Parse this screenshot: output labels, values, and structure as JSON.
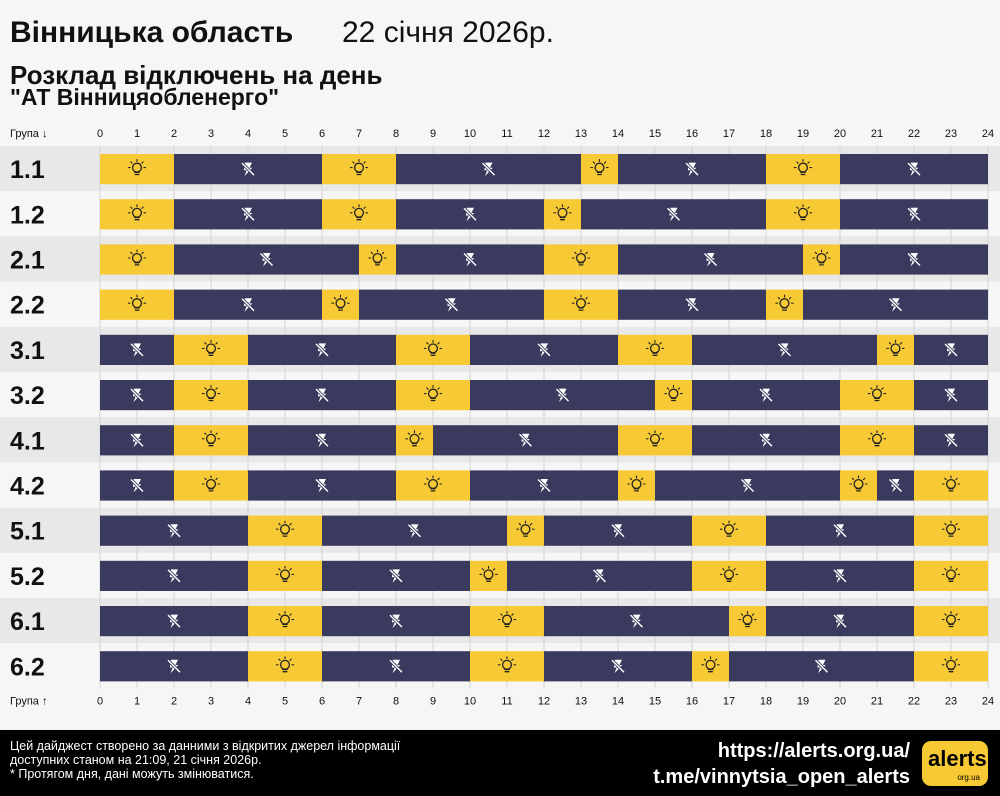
{
  "header": {
    "region": "Вінницька область",
    "date": "22 січня 2026р.",
    "subtitle": "Розклад відключень на день",
    "company": "\"АТ Вінницяобленерго\""
  },
  "axis": {
    "top_label": "Група ↓",
    "bottom_label": "Група ↑",
    "hours": [
      "0",
      "1",
      "2",
      "3",
      "4",
      "5",
      "6",
      "7",
      "8",
      "9",
      "10",
      "11",
      "12",
      "13",
      "14",
      "15",
      "16",
      "17",
      "18",
      "19",
      "20",
      "21",
      "22",
      "23",
      "24"
    ]
  },
  "colors": {
    "on": "#f7c934",
    "off": "#3a3a5e",
    "row_even": "#e8e8e8",
    "row_odd": "#f6f6f6"
  },
  "icons": {
    "on": "lightbulb-icon",
    "off": "power-off-icon"
  },
  "chart_data": {
    "type": "table",
    "unit": "hours",
    "legend": {
      "on": "power on",
      "off": "power off"
    },
    "groups": [
      {
        "name": "1.1",
        "segments": [
          [
            0,
            2,
            "on"
          ],
          [
            2,
            6,
            "off"
          ],
          [
            6,
            8,
            "on"
          ],
          [
            8,
            13,
            "off"
          ],
          [
            13,
            14,
            "on"
          ],
          [
            14,
            18,
            "off"
          ],
          [
            18,
            20,
            "on"
          ],
          [
            20,
            24,
            "off"
          ]
        ]
      },
      {
        "name": "1.2",
        "segments": [
          [
            0,
            2,
            "on"
          ],
          [
            2,
            6,
            "off"
          ],
          [
            6,
            8,
            "on"
          ],
          [
            8,
            12,
            "off"
          ],
          [
            12,
            13,
            "on"
          ],
          [
            13,
            18,
            "off"
          ],
          [
            18,
            20,
            "on"
          ],
          [
            20,
            24,
            "off"
          ]
        ]
      },
      {
        "name": "2.1",
        "segments": [
          [
            0,
            2,
            "on"
          ],
          [
            2,
            7,
            "off"
          ],
          [
            7,
            8,
            "on"
          ],
          [
            8,
            12,
            "off"
          ],
          [
            12,
            14,
            "on"
          ],
          [
            14,
            19,
            "off"
          ],
          [
            19,
            20,
            "on"
          ],
          [
            20,
            24,
            "off"
          ]
        ]
      },
      {
        "name": "2.2",
        "segments": [
          [
            0,
            2,
            "on"
          ],
          [
            2,
            6,
            "off"
          ],
          [
            6,
            7,
            "on"
          ],
          [
            7,
            12,
            "off"
          ],
          [
            12,
            14,
            "on"
          ],
          [
            14,
            18,
            "off"
          ],
          [
            18,
            19,
            "on"
          ],
          [
            19,
            24,
            "off"
          ]
        ]
      },
      {
        "name": "3.1",
        "segments": [
          [
            0,
            2,
            "off"
          ],
          [
            2,
            4,
            "on"
          ],
          [
            4,
            8,
            "off"
          ],
          [
            8,
            10,
            "on"
          ],
          [
            10,
            14,
            "off"
          ],
          [
            14,
            16,
            "on"
          ],
          [
            16,
            21,
            "off"
          ],
          [
            21,
            22,
            "on"
          ],
          [
            22,
            24,
            "off"
          ]
        ]
      },
      {
        "name": "3.2",
        "segments": [
          [
            0,
            2,
            "off"
          ],
          [
            2,
            4,
            "on"
          ],
          [
            4,
            8,
            "off"
          ],
          [
            8,
            10,
            "on"
          ],
          [
            10,
            15,
            "off"
          ],
          [
            15,
            16,
            "on"
          ],
          [
            16,
            20,
            "off"
          ],
          [
            20,
            22,
            "on"
          ],
          [
            22,
            24,
            "off"
          ]
        ]
      },
      {
        "name": "4.1",
        "segments": [
          [
            0,
            2,
            "off"
          ],
          [
            2,
            4,
            "on"
          ],
          [
            4,
            8,
            "off"
          ],
          [
            8,
            9,
            "on"
          ],
          [
            9,
            14,
            "off"
          ],
          [
            14,
            16,
            "on"
          ],
          [
            16,
            20,
            "off"
          ],
          [
            20,
            22,
            "on"
          ],
          [
            22,
            24,
            "off"
          ]
        ]
      },
      {
        "name": "4.2",
        "segments": [
          [
            0,
            2,
            "off"
          ],
          [
            2,
            4,
            "on"
          ],
          [
            4,
            8,
            "off"
          ],
          [
            8,
            10,
            "on"
          ],
          [
            10,
            14,
            "off"
          ],
          [
            14,
            15,
            "on"
          ],
          [
            15,
            20,
            "off"
          ],
          [
            20,
            21,
            "on"
          ],
          [
            21,
            22,
            "off"
          ],
          [
            22,
            24,
            "on"
          ]
        ]
      },
      {
        "name": "5.1",
        "segments": [
          [
            0,
            4,
            "off"
          ],
          [
            4,
            6,
            "on"
          ],
          [
            6,
            11,
            "off"
          ],
          [
            11,
            12,
            "on"
          ],
          [
            12,
            16,
            "off"
          ],
          [
            16,
            18,
            "on"
          ],
          [
            18,
            22,
            "off"
          ],
          [
            22,
            24,
            "on"
          ]
        ]
      },
      {
        "name": "5.2",
        "segments": [
          [
            0,
            4,
            "off"
          ],
          [
            4,
            6,
            "on"
          ],
          [
            6,
            10,
            "off"
          ],
          [
            10,
            11,
            "on"
          ],
          [
            11,
            16,
            "off"
          ],
          [
            16,
            18,
            "on"
          ],
          [
            18,
            22,
            "off"
          ],
          [
            22,
            24,
            "on"
          ]
        ]
      },
      {
        "name": "6.1",
        "segments": [
          [
            0,
            4,
            "off"
          ],
          [
            4,
            6,
            "on"
          ],
          [
            6,
            10,
            "off"
          ],
          [
            10,
            12,
            "on"
          ],
          [
            12,
            17,
            "off"
          ],
          [
            17,
            18,
            "on"
          ],
          [
            18,
            22,
            "off"
          ],
          [
            22,
            24,
            "on"
          ]
        ]
      },
      {
        "name": "6.2",
        "segments": [
          [
            0,
            4,
            "off"
          ],
          [
            4,
            6,
            "on"
          ],
          [
            6,
            10,
            "off"
          ],
          [
            10,
            12,
            "on"
          ],
          [
            12,
            16,
            "off"
          ],
          [
            16,
            17,
            "on"
          ],
          [
            17,
            22,
            "off"
          ],
          [
            22,
            24,
            "on"
          ]
        ]
      }
    ]
  },
  "footer": {
    "note_line1": "Цей дайджест створено за данними з відкритих джерел інформації",
    "note_line2": "доступних станом на 21:09, 21 січня 2026р.",
    "note_line3": "* Протягом дня, дані можуть змінюватися.",
    "link_site": "https://alerts.org.ua/",
    "link_telegram": "t.me/vinnytsia_open_alerts",
    "logo_text": "alerts",
    "logo_sub": "org.ua"
  }
}
